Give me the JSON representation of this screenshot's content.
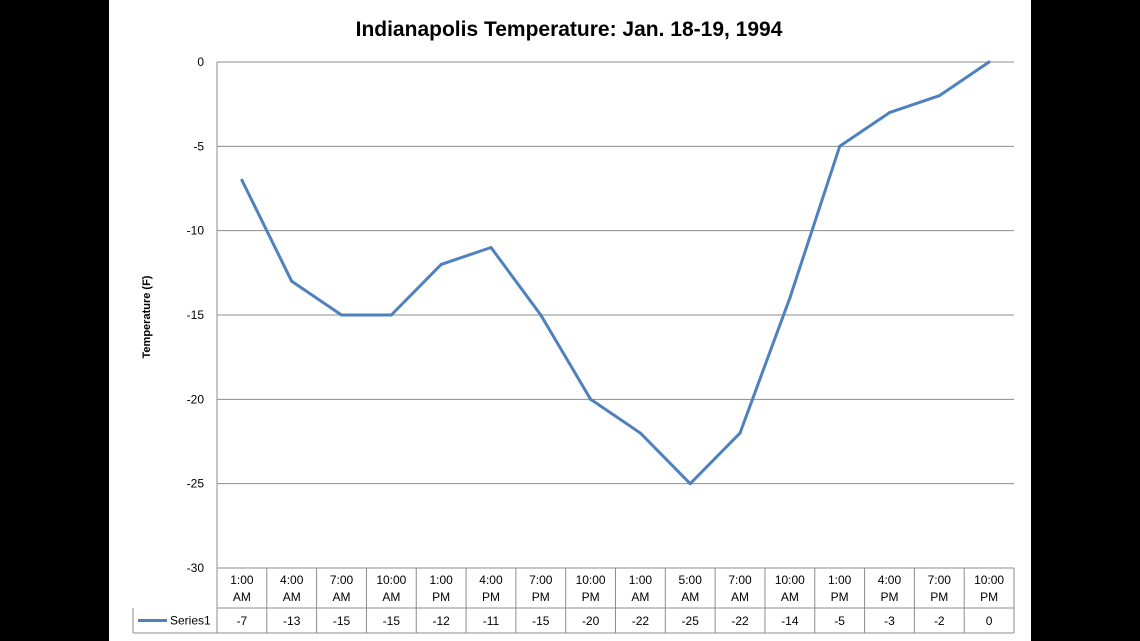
{
  "chart_data": {
    "type": "line",
    "title": "Indianapolis Temperature:  Jan. 18-19, 1994",
    "xlabel": "",
    "ylabel": "Temperature (F)",
    "ylim": [
      -30,
      0
    ],
    "yticks": [
      0,
      -5,
      -10,
      -15,
      -20,
      -25,
      -30
    ],
    "grid": true,
    "legend_placement": "data-table",
    "categories": [
      [
        "1:00",
        "AM"
      ],
      [
        "4:00",
        "AM"
      ],
      [
        "7:00",
        "AM"
      ],
      [
        "10:00",
        "AM"
      ],
      [
        "1:00",
        "PM"
      ],
      [
        "4:00",
        "PM"
      ],
      [
        "7:00",
        "PM"
      ],
      [
        "10:00",
        "PM"
      ],
      [
        "1:00",
        "AM"
      ],
      [
        "5:00",
        "AM"
      ],
      [
        "7:00",
        "AM"
      ],
      [
        "10:00",
        "AM"
      ],
      [
        "1:00",
        "PM"
      ],
      [
        "4:00",
        "PM"
      ],
      [
        "7:00",
        "PM"
      ],
      [
        "10:00",
        "PM"
      ]
    ],
    "series": [
      {
        "name": "Series1",
        "color": "#4f81bd",
        "values": [
          -7,
          -13,
          -15,
          -15,
          -12,
          -11,
          -15,
          -20,
          -22,
          -25,
          -22,
          -14,
          -5,
          -3,
          -2,
          0
        ]
      }
    ]
  }
}
